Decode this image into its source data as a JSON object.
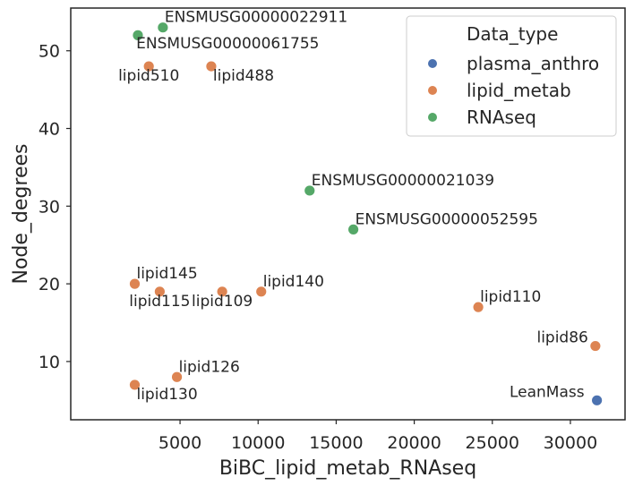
{
  "chart_data": {
    "type": "scatter",
    "xlabel": "BiBC_lipid_metab_RNAseq",
    "ylabel": "Node_degrees",
    "xlim": [
      -2000,
      33500
    ],
    "ylim": [
      2.5,
      55.5
    ],
    "xticks": [
      5000,
      10000,
      15000,
      20000,
      25000,
      30000
    ],
    "yticks": [
      10,
      20,
      30,
      40,
      50
    ],
    "grid": false,
    "legend": {
      "title": "Data_type",
      "placement": "top-right",
      "entries": [
        {
          "name": "plasma_anthro",
          "color": "#4c72b0"
        },
        {
          "name": "lipid_metab",
          "color": "#dd8452"
        },
        {
          "name": "RNAseq",
          "color": "#55a868"
        }
      ]
    },
    "points": [
      {
        "x": 2300,
        "y": 52,
        "label": "",
        "group": "RNAseq"
      },
      {
        "x": 3900,
        "y": 53,
        "label": "ENSMUSG00000022911",
        "group": "RNAseq",
        "anchor": "start",
        "dx": 2,
        "dy": -6
      },
      {
        "x": 3000,
        "y": 48,
        "label": "ENSMUSG00000061755",
        "group": "lipid_metab",
        "anchor": "start",
        "dx": -14,
        "dy": -20
      },
      {
        "x": 3000,
        "y": 48,
        "label": "lipid510",
        "group": "lipid_metab",
        "anchor": "middle",
        "dx": 0,
        "dy": 16,
        "labelOnly": true
      },
      {
        "x": 7000,
        "y": 48,
        "label": "lipid488",
        "group": "lipid_metab",
        "anchor": "start",
        "dx": 2,
        "dy": 16
      },
      {
        "x": 13300,
        "y": 32,
        "label": "ENSMUSG00000021039",
        "group": "RNAseq",
        "anchor": "start",
        "dx": 2,
        "dy": -6
      },
      {
        "x": 16100,
        "y": 27,
        "label": "ENSMUSG00000052595",
        "group": "RNAseq",
        "anchor": "start",
        "dx": 2,
        "dy": -6
      },
      {
        "x": 2100,
        "y": 20,
        "label": "lipid145",
        "group": "lipid_metab",
        "anchor": "start",
        "dx": 2,
        "dy": -6
      },
      {
        "x": 3700,
        "y": 19,
        "label": "lipid115",
        "group": "lipid_metab",
        "anchor": "middle",
        "dx": 0,
        "dy": 16
      },
      {
        "x": 7700,
        "y": 19,
        "label": "lipid109",
        "group": "lipid_metab",
        "anchor": "middle",
        "dx": 0,
        "dy": 16
      },
      {
        "x": 10200,
        "y": 19,
        "label": "lipid140",
        "group": "lipid_metab",
        "anchor": "start",
        "dx": 2,
        "dy": -6
      },
      {
        "x": 24100,
        "y": 17,
        "label": "lipid110",
        "group": "lipid_metab",
        "anchor": "start",
        "dx": 2,
        "dy": -6
      },
      {
        "x": 31600,
        "y": 12,
        "label": "lipid86",
        "group": "lipid_metab",
        "anchor": "end",
        "dx": -8,
        "dy": -4
      },
      {
        "x": 4800,
        "y": 8,
        "label": "lipid126",
        "group": "lipid_metab",
        "anchor": "start",
        "dx": 2,
        "dy": -6
      },
      {
        "x": 2100,
        "y": 7,
        "label": "lipid130",
        "group": "lipid_metab",
        "anchor": "start",
        "dx": 2,
        "dy": 16
      },
      {
        "x": 31700,
        "y": 5,
        "label": "LeanMass",
        "group": "plasma_anthro",
        "anchor": "end",
        "dx": -14,
        "dy": -4
      }
    ]
  }
}
